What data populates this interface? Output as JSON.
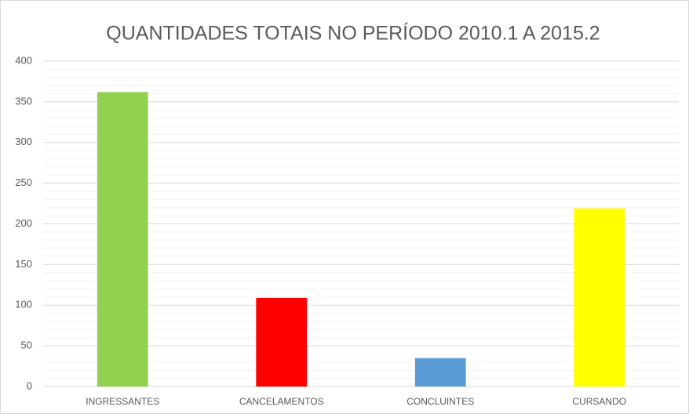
{
  "chart_data": {
    "type": "bar",
    "title": "QUANTIDADES TOTAIS NO PERÍODO 2010.1 A 2015.2",
    "categories": [
      "INGRESSANTES",
      "CANCELAMENTOS",
      "CONCLUINTES",
      "CURSANDO"
    ],
    "values": [
      362,
      109,
      35,
      219
    ],
    "colors": [
      "#92d050",
      "#ff0000",
      "#5b9bd5",
      "#ffff00"
    ],
    "ylim": [
      0,
      400
    ],
    "yticks": [
      0,
      50,
      100,
      150,
      200,
      250,
      300,
      350,
      400
    ],
    "grid": true,
    "minor_grid": true
  }
}
